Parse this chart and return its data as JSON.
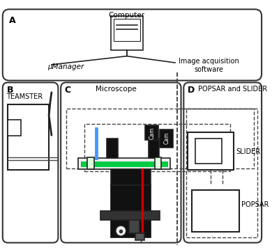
{
  "bg_color": "#ffffff",
  "panel_bg": "#f5f5f5",
  "border_color": "#222222",
  "text_color": "#222222",
  "green_color": "#00cc44",
  "blue_color": "#4499ff",
  "red_color": "#cc0000",
  "cyan_color": "#00cccc",
  "dark_color": "#111111",
  "gray_color": "#888888",
  "label_A": "A",
  "label_B": "B",
  "label_C": "C",
  "label_D": "D",
  "text_computer": "Computer",
  "text_mumanager": "μManager",
  "text_image_acq": "Image acquisition\nsoftware",
  "text_teamster": "TEAMSTER",
  "text_microscope": "Microscope",
  "text_popsar_slider": "POPSAR and SLIDER",
  "text_slider": "SLIDER",
  "text_popsar": "POPSAR",
  "text_cam1": "Cam",
  "text_cam2": "Cam"
}
